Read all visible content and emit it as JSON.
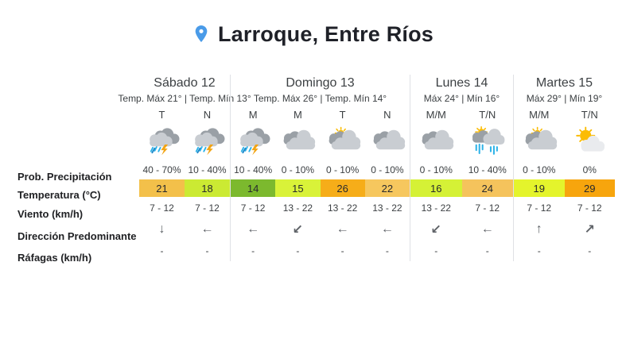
{
  "header": {
    "title": "Larroque, Entre Ríos"
  },
  "row_labels": {
    "precip": "Prob. Precipitación",
    "temp": "Temperatura (°C)",
    "wind": "Viento (km/h)",
    "direction": "Dirección Predominante",
    "gusts": "Ráfagas (km/h)"
  },
  "colors": {
    "pin_blue": "#4a9be8",
    "divider": "#dfe1e5",
    "sun_yellow": "#fbbc04",
    "rain_blue": "#2fb3e8",
    "lightning_orange": "#f2a413"
  },
  "days": [
    {
      "name": "Sábado 12",
      "subtitle": "Temp. Máx 21° | Temp. Mín 13°",
      "periods": [
        {
          "label": "T",
          "icon": "storm",
          "precip": "40 - 70%",
          "temp": "21",
          "temp_color": "#f3c04a",
          "wind": "7 - 12",
          "arrow": "↓",
          "gusts": "-"
        },
        {
          "label": "N",
          "icon": "storm",
          "precip": "10 - 40%",
          "temp": "18",
          "temp_color": "#cbea33",
          "wind": "7 - 12",
          "arrow": "←",
          "gusts": "-"
        }
      ]
    },
    {
      "name": "Domingo 13",
      "subtitle": "Temp. Máx 26° | Temp. Mín 14°",
      "periods": [
        {
          "label": "M",
          "icon": "storm",
          "precip": "10 - 40%",
          "temp": "14",
          "temp_color": "#7cb92e",
          "wind": "7 - 12",
          "arrow": "←",
          "gusts": "-"
        },
        {
          "label": "M",
          "icon": "cloudy",
          "precip": "0 - 10%",
          "temp": "15",
          "temp_color": "#d9f239",
          "wind": "13 - 22",
          "arrow": "↙",
          "gusts": "-"
        },
        {
          "label": "T",
          "icon": "sun-behind-clouds",
          "precip": "0 - 10%",
          "temp": "26",
          "temp_color": "#f6ad19",
          "wind": "13 - 22",
          "arrow": "←",
          "gusts": "-"
        },
        {
          "label": "N",
          "icon": "cloudy",
          "precip": "0 - 10%",
          "temp": "22",
          "temp_color": "#f6c75e",
          "wind": "13 - 22",
          "arrow": "←",
          "gusts": "-"
        }
      ]
    },
    {
      "name": "Lunes 14",
      "subtitle": "Máx 24° | Mín 16°",
      "periods": [
        {
          "label": "M/M",
          "icon": "cloudy",
          "precip": "0 - 10%",
          "temp": "16",
          "temp_color": "#d5f136",
          "wind": "13 - 22",
          "arrow": "↙",
          "gusts": "-"
        },
        {
          "label": "T/N",
          "icon": "rain-sun",
          "precip": "10 - 40%",
          "temp": "24",
          "temp_color": "#f5c35c",
          "wind": "7 - 12",
          "arrow": "←",
          "gusts": "-"
        }
      ]
    },
    {
      "name": "Martes 15",
      "subtitle": "Máx 29° | Mín 19°",
      "periods": [
        {
          "label": "M/M",
          "icon": "sun-behind-clouds",
          "precip": "0 - 10%",
          "temp": "19",
          "temp_color": "#e4f42c",
          "wind": "7 - 12",
          "arrow": "↑",
          "gusts": "-"
        },
        {
          "label": "T/N",
          "icon": "sun-cloud",
          "precip": "0%",
          "temp": "29",
          "temp_color": "#f7a50d",
          "wind": "7 - 12",
          "arrow": "↗",
          "gusts": "-"
        }
      ]
    }
  ]
}
